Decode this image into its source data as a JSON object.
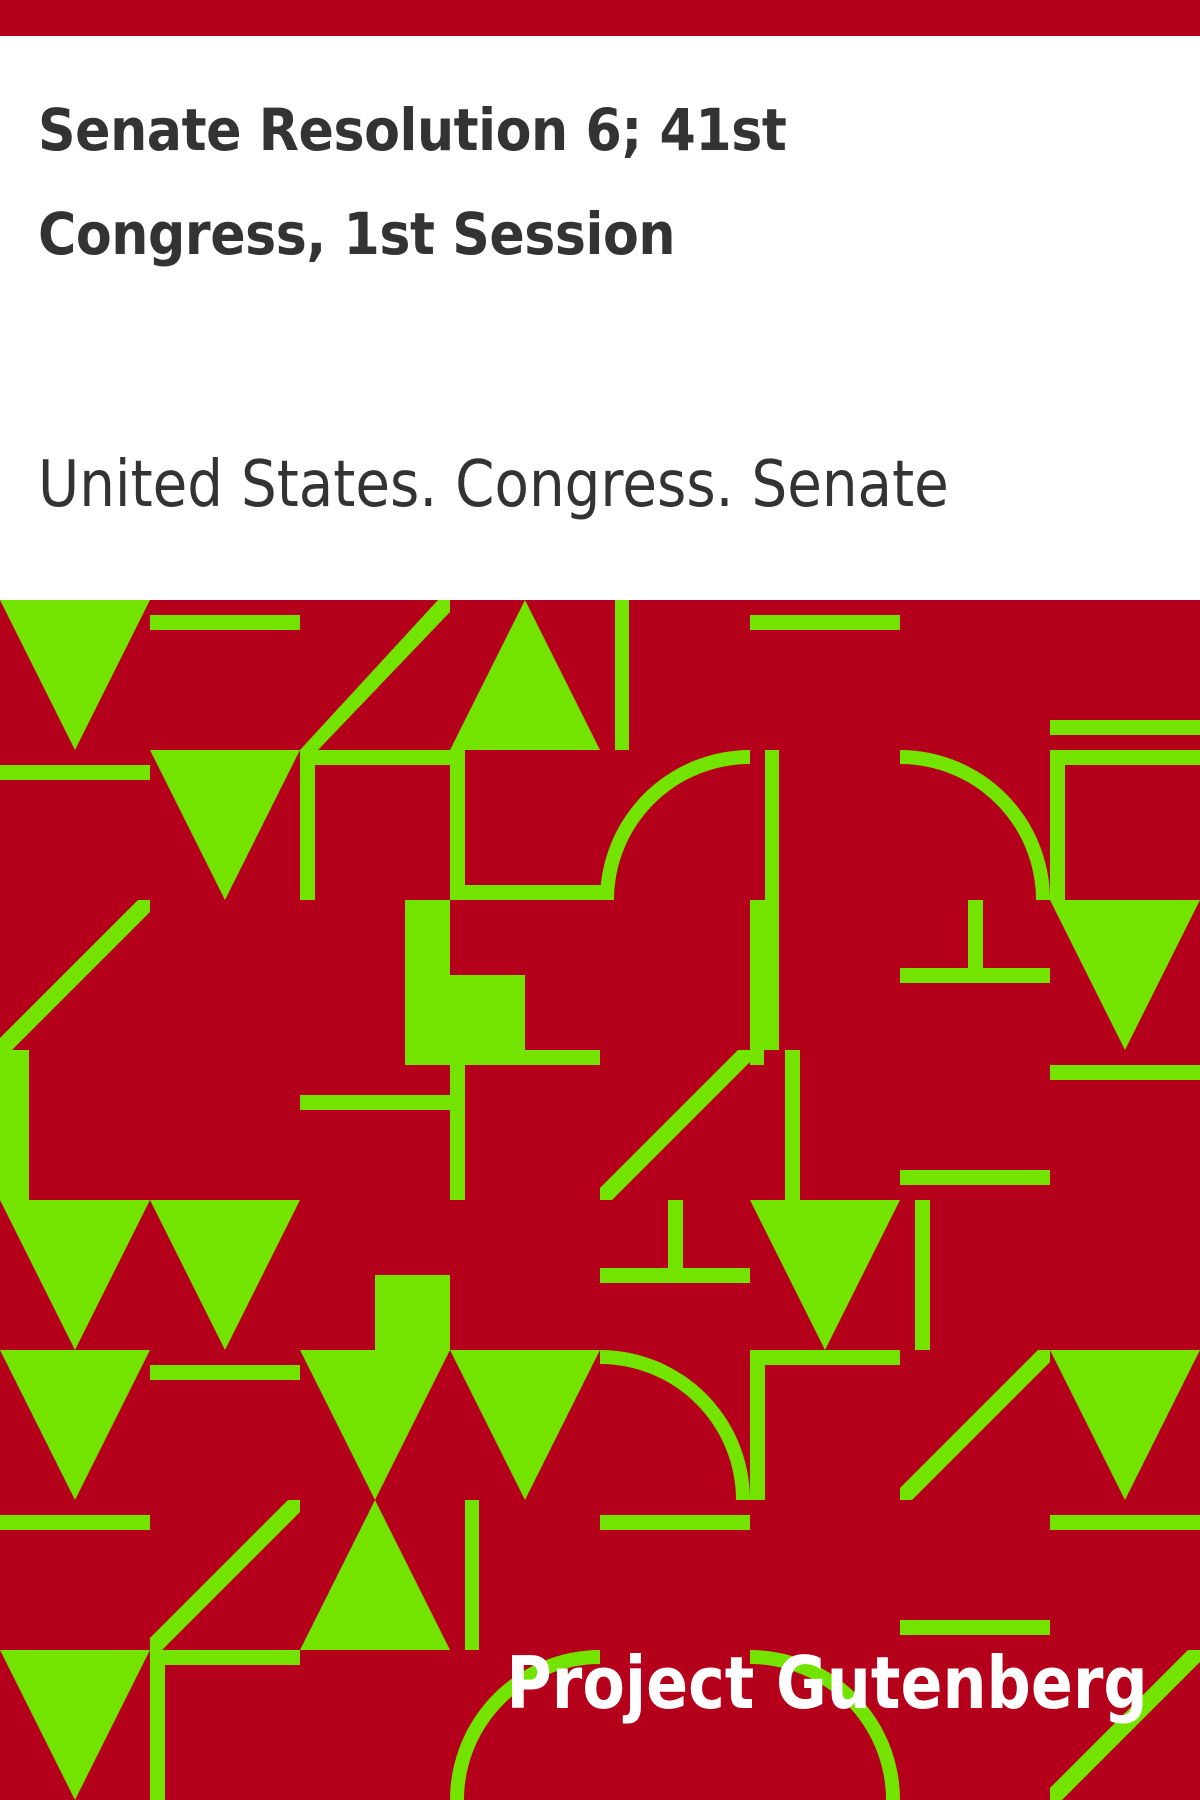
{
  "book": {
    "title": "Senate Resolution 6; 41st Congress, 1st Session",
    "author": "United States. Congress. Senate"
  },
  "publisher": {
    "name": "Project Gutenberg"
  },
  "colors": {
    "banner": "#b5001c",
    "pattern_background": "#b5001c",
    "pattern_shapes": "#72e400",
    "text_primary": "#333333",
    "brand_text": "#ffffff"
  }
}
